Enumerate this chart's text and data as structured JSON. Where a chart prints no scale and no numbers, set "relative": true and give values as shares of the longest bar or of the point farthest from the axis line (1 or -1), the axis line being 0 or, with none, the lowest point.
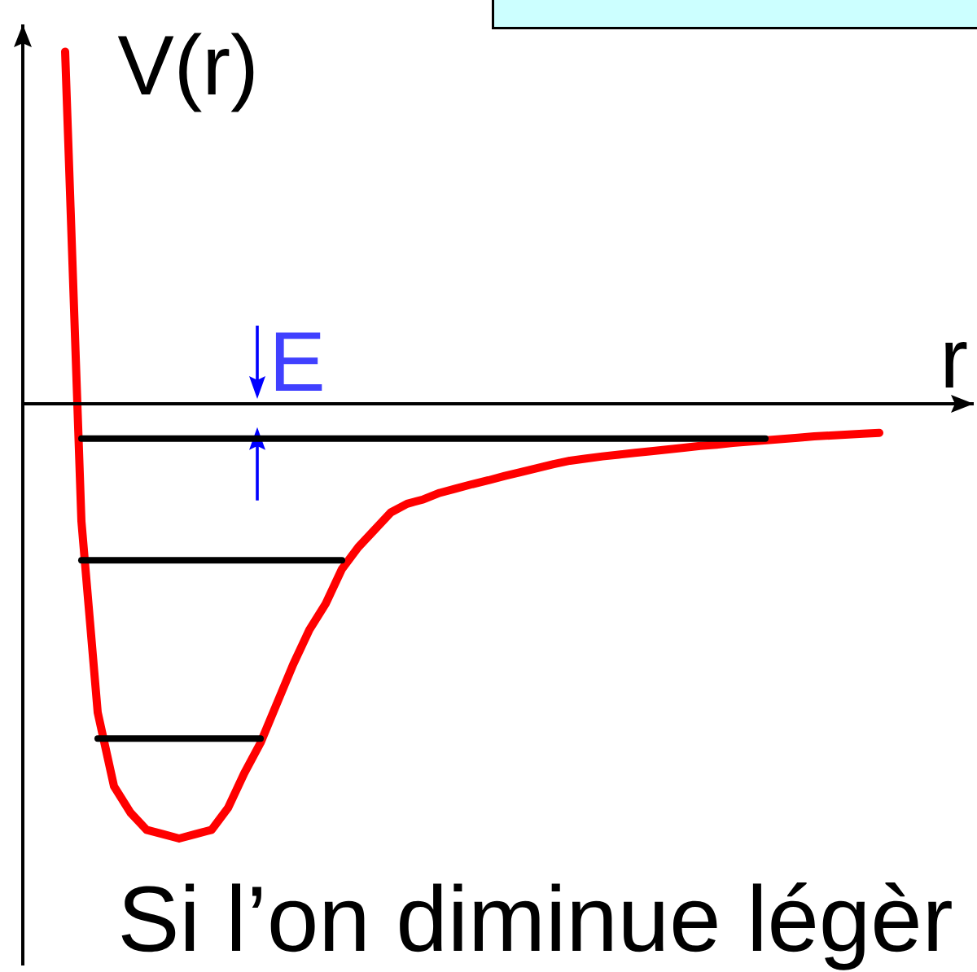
{
  "chart_data": {
    "type": "line",
    "relative": true,
    "xlabel": "r",
    "ylabel": "V(r)",
    "annotations": [
      "E",
      "Si l’on diminue légèr"
    ],
    "categories": [
      null,
      null,
      null,
      null,
      null,
      null,
      null,
      null,
      null,
      null,
      null,
      null,
      null,
      null,
      null,
      null,
      null,
      null,
      null,
      null,
      null,
      null,
      null,
      null,
      null,
      null,
      null,
      null,
      null,
      null,
      null,
      null,
      null,
      null,
      null,
      null,
      null,
      null,
      null,
      null,
      null,
      null,
      null,
      null,
      null,
      null,
      null,
      null,
      null,
      null,
      null
    ],
    "series": [
      {
        "color": "#ff0000",
        "values": [
          0.81,
          -0.27,
          -0.71,
          -0.88,
          -0.94,
          -0.98,
          -0.99,
          -1,
          -0.99,
          -0.98,
          -0.93,
          -0.85,
          -0.78,
          -0.69,
          -0.6,
          -0.52,
          -0.46,
          -0.38,
          -0.33,
          -0.29,
          -0.25,
          -0.23,
          -0.22,
          -0.205,
          -0.195,
          -0.185,
          -0.176,
          -0.166,
          -0.157,
          -0.148,
          -0.139,
          -0.131,
          -0.126,
          -0.121,
          -0.117,
          -0.113,
          -0.109,
          -0.105,
          -0.101,
          -0.097,
          -0.094,
          -0.09,
          -0.087,
          -0.084,
          -0.081,
          -0.078,
          -0.075,
          -0.073,
          -0.071,
          -0.069,
          -0.067
        ]
      },
      {
        "color": "#000000",
        "values": [
          null,
          -0.08,
          -0.08,
          -0.08,
          -0.08,
          -0.08,
          -0.08,
          -0.08,
          -0.08,
          -0.08,
          -0.08,
          -0.08,
          -0.08,
          -0.08,
          -0.08,
          -0.08,
          -0.08,
          -0.08,
          -0.08,
          -0.08,
          -0.08,
          -0.08,
          -0.08,
          -0.08,
          -0.08,
          -0.08,
          -0.08,
          -0.08,
          -0.08,
          -0.08,
          -0.08,
          -0.08,
          -0.08,
          -0.08,
          -0.08,
          -0.08,
          -0.08,
          -0.08,
          -0.08,
          -0.08,
          -0.08,
          -0.08,
          -0.08,
          -0.08,
          null,
          null,
          null,
          null,
          null,
          null,
          null
        ]
      },
      {
        "color": "#000000",
        "values": [
          null,
          -0.36,
          -0.36,
          -0.36,
          -0.36,
          -0.36,
          -0.36,
          -0.36,
          -0.36,
          -0.36,
          -0.36,
          -0.36,
          -0.36,
          -0.36,
          -0.36,
          -0.36,
          -0.36,
          -0.36,
          null,
          null,
          null,
          null,
          null,
          null,
          null,
          null,
          null,
          null,
          null,
          null,
          null,
          null,
          null,
          null,
          null,
          null,
          null,
          null,
          null,
          null,
          null,
          null,
          null,
          null,
          null,
          null,
          null,
          null,
          null,
          null,
          null
        ]
      },
      {
        "color": "#000000",
        "values": [
          null,
          null,
          -0.77,
          -0.77,
          -0.77,
          -0.77,
          -0.77,
          -0.77,
          -0.77,
          -0.77,
          -0.77,
          -0.77,
          -0.77,
          null,
          null,
          null,
          null,
          null,
          null,
          null,
          null,
          null,
          null,
          null,
          null,
          null,
          null,
          null,
          null,
          null,
          null,
          null,
          null,
          null,
          null,
          null,
          null,
          null,
          null,
          null,
          null,
          null,
          null,
          null,
          null,
          null,
          null,
          null,
          null,
          null,
          null
        ]
      }
    ]
  }
}
